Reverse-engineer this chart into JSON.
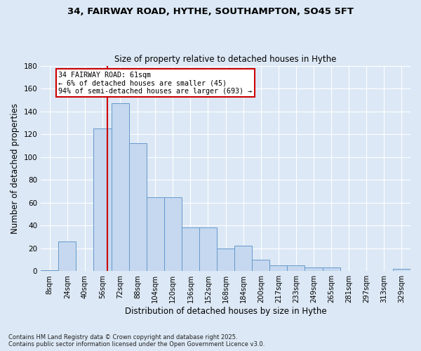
{
  "title1": "34, FAIRWAY ROAD, HYTHE, SOUTHAMPTON, SO45 5FT",
  "title2": "Size of property relative to detached houses in Hythe",
  "xlabel": "Distribution of detached houses by size in Hythe",
  "ylabel": "Number of detached properties",
  "categories": [
    "8sqm",
    "24sqm",
    "40sqm",
    "56sqm",
    "72sqm",
    "88sqm",
    "104sqm",
    "120sqm",
    "136sqm",
    "152sqm",
    "168sqm",
    "184sqm",
    "200sqm",
    "217sqm",
    "233sqm",
    "249sqm",
    "265sqm",
    "281sqm",
    "297sqm",
    "313sqm",
    "329sqm"
  ],
  "values": [
    1,
    26,
    0,
    125,
    147,
    112,
    65,
    65,
    38,
    38,
    20,
    22,
    10,
    5,
    5,
    3,
    3,
    0,
    0,
    0,
    2
  ],
  "bar_color": "#c5d8ef",
  "bar_edge_color": "#6699cc",
  "vline_color": "#cc0000",
  "annotation_text": "34 FAIRWAY ROAD: 61sqm\n← 6% of detached houses are smaller (45)\n94% of semi-detached houses are larger (693) →",
  "annotation_box_facecolor": "#ffffff",
  "annotation_box_edgecolor": "#cc0000",
  "background_color": "#dce8f5",
  "plot_bg_color": "#dce8f5",
  "footer": "Contains HM Land Registry data © Crown copyright and database right 2025.\nContains public sector information licensed under the Open Government Licence v3.0.",
  "ylim": [
    0,
    180
  ],
  "yticks": [
    0,
    20,
    40,
    60,
    80,
    100,
    120,
    140,
    160,
    180
  ],
  "vline_xindex": 3.3
}
